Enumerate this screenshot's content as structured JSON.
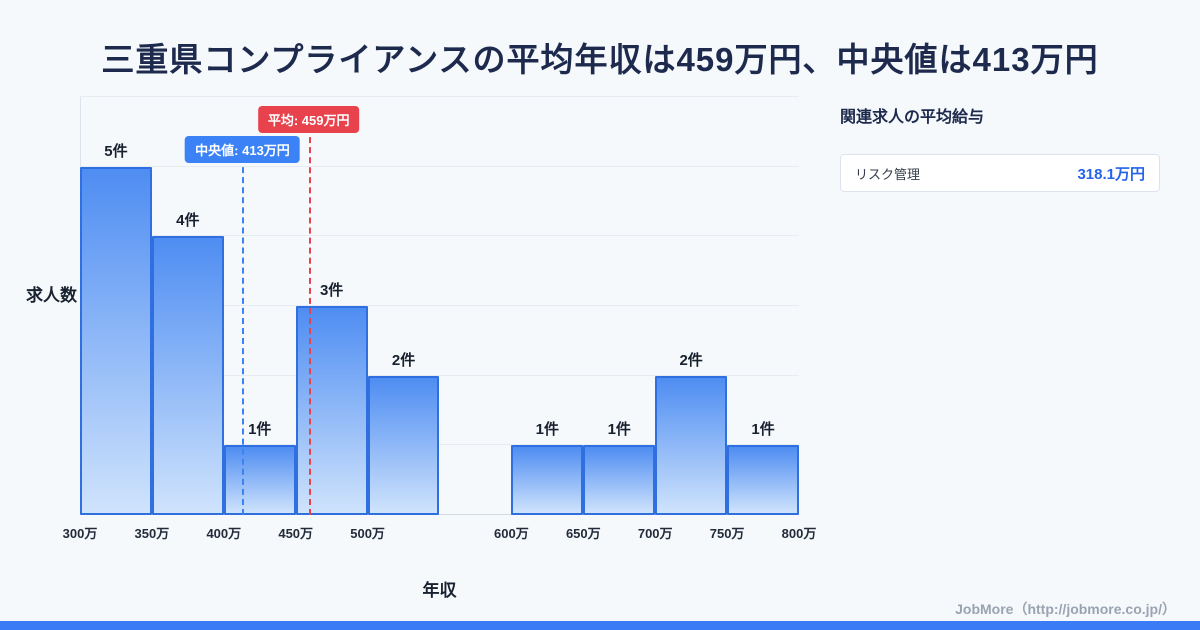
{
  "title": "三重県コンプライアンスの平均年収は459万円、中央値は413万円",
  "chart": {
    "ylabel": "求人数",
    "xlabel": "年収"
  },
  "chart_data": {
    "type": "bar",
    "title": "三重県コンプライアンスの平均年収は459万円、中央値は413万円",
    "xlabel": "年収",
    "ylabel": "求人数",
    "x_min": 300,
    "x_max": 800,
    "y_max": 6,
    "grid": true,
    "x_ticks": [
      {
        "value": 300,
        "label": "300万"
      },
      {
        "value": 350,
        "label": "350万"
      },
      {
        "value": 400,
        "label": "400万"
      },
      {
        "value": 450,
        "label": "450万"
      },
      {
        "value": 500,
        "label": "500万"
      },
      {
        "value": 600,
        "label": "600万"
      },
      {
        "value": 650,
        "label": "650万"
      },
      {
        "value": 700,
        "label": "700万"
      },
      {
        "value": 750,
        "label": "750万"
      },
      {
        "value": 800,
        "label": "800万"
      }
    ],
    "bins": [
      {
        "from": 300,
        "to": 350,
        "count": 5,
        "label": "5件"
      },
      {
        "from": 350,
        "to": 400,
        "count": 4,
        "label": "4件"
      },
      {
        "from": 400,
        "to": 450,
        "count": 1,
        "label": "1件"
      },
      {
        "from": 450,
        "to": 500,
        "count": 3,
        "label": "3件"
      },
      {
        "from": 500,
        "to": 550,
        "count": 2,
        "label": "2件"
      },
      {
        "from": 600,
        "to": 650,
        "count": 1,
        "label": "1件"
      },
      {
        "from": 650,
        "to": 700,
        "count": 1,
        "label": "1件"
      },
      {
        "from": 700,
        "to": 750,
        "count": 2,
        "label": "2件"
      },
      {
        "from": 750,
        "to": 800,
        "count": 1,
        "label": "1件"
      }
    ],
    "mean": {
      "value": 459,
      "label": "平均: 459万円"
    },
    "median": {
      "value": 413,
      "label": "中央値: 413万円"
    },
    "colors": {
      "bar_top": "#4e8df2",
      "bar_bottom": "#cfe3fc",
      "bar_border": "#2f6fe0",
      "mean": "#e8424d",
      "median": "#3b82f6"
    }
  },
  "sidebar": {
    "title": "関連求人の平均給与",
    "items": [
      {
        "name": "リスク管理",
        "value": "318.1万円"
      }
    ]
  },
  "footer": {
    "credit": "JobMore（http://jobmore.co.jp/）"
  }
}
